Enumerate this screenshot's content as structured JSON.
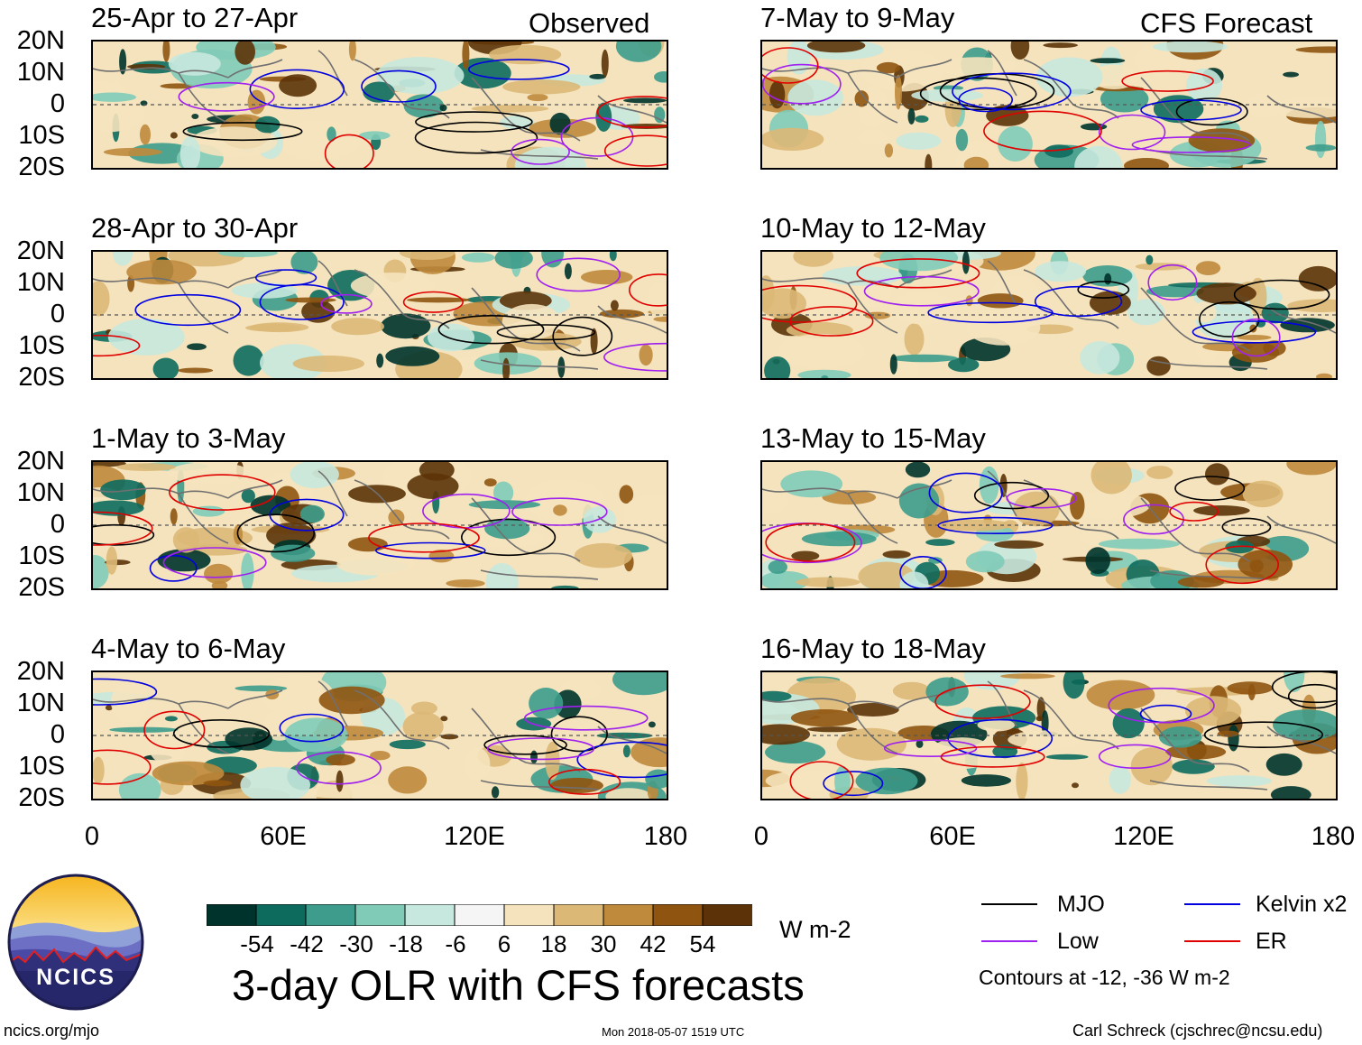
{
  "main_title": "3-day OLR with CFS forecasts",
  "column_labels": {
    "observed": "Observed",
    "forecast": "CFS Forecast"
  },
  "latitude_ticks": [
    "20N",
    "10N",
    "0",
    "10S",
    "20S"
  ],
  "longitude_ticks": [
    "0",
    "60E",
    "120E",
    "180"
  ],
  "panels": {
    "observed": [
      {
        "title": "25-Apr to 27-Apr"
      },
      {
        "title": "28-Apr to 30-Apr"
      },
      {
        "title": "1-May to 3-May"
      },
      {
        "title": "4-May to 6-May"
      }
    ],
    "forecast": [
      {
        "title": "7-May to 9-May"
      },
      {
        "title": "10-May to 12-May"
      },
      {
        "title": "13-May to 15-May"
      },
      {
        "title": "16-May to 18-May"
      }
    ]
  },
  "colorbar": {
    "unit": "W m-2",
    "labels": [
      "-54",
      "-42",
      "-30",
      "-18",
      "-6",
      "6",
      "18",
      "30",
      "42",
      "54"
    ],
    "colors": [
      "#00332b",
      "#0d6b5e",
      "#3d9c8c",
      "#7fcbb8",
      "#c6e8de",
      "#f5f5f5",
      "#f5e3bd",
      "#dcb877",
      "#bf8a3c",
      "#8f5410",
      "#5c3308"
    ]
  },
  "legend": {
    "items": [
      {
        "label": "MJO",
        "color": "#000000"
      },
      {
        "label": "Kelvin x2",
        "color": "#0000e0"
      },
      {
        "label": "Low",
        "color": "#a020f0"
      },
      {
        "label": "ER",
        "color": "#e00000"
      }
    ],
    "contour_note": "Contours at -12, -36 W m-2"
  },
  "logo": {
    "text": "NCICS"
  },
  "footer": {
    "url": "ncics.org/mjo",
    "timestamp": "Mon 2018-05-07 1519 UTC",
    "credit": "Carl Schreck (cjschrec@ncsu.edu)"
  }
}
